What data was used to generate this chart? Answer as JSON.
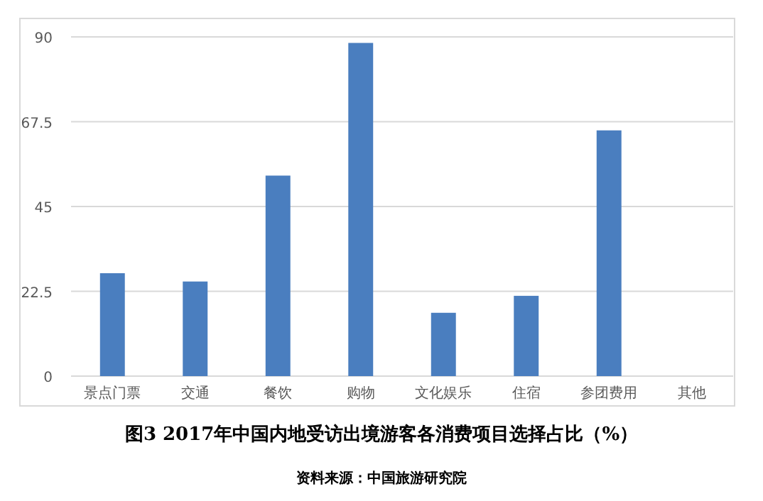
{
  "chart_data": {
    "type": "bar",
    "title": "图3 2017年中国内地受访出境游客各消费项目选择占比（%）",
    "annotations": [
      "资料来源：中国旅游研究院"
    ],
    "categories": [
      "景点门票",
      "交通",
      "餐饮",
      "购物",
      "文化娱乐",
      "住宿",
      "参团费用",
      "其他"
    ],
    "values": [
      27.3,
      25.1,
      53.2,
      88.4,
      16.8,
      21.3,
      65.2,
      0
    ],
    "color": "#4a7ebf",
    "ylim": [
      0,
      90
    ],
    "yticks": [
      0,
      22.5,
      45,
      67.5,
      90
    ],
    "grid": "y"
  }
}
